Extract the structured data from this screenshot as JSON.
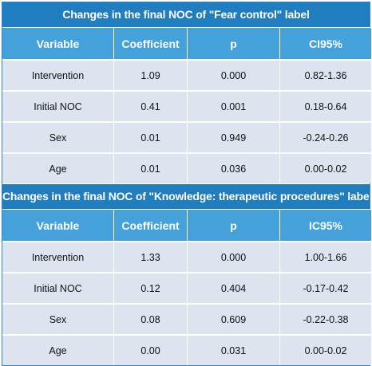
{
  "tables": [
    {
      "title": "Changes in the final NOC of \"Fear control\" label",
      "headers": [
        "Variable",
        "Coefficient",
        "p",
        "CI95%"
      ],
      "rows": [
        [
          "Intervention",
          "1.09",
          "0.000",
          "0.82-1.36"
        ],
        [
          "Initial NOC",
          "0.41",
          "0.001",
          "0.18-0.64"
        ],
        [
          "Sex",
          "0.01",
          "0.949",
          "-0.24-0.26"
        ],
        [
          "Age",
          "0.01",
          "0.036",
          "0.00-0.02"
        ]
      ]
    },
    {
      "title": "Changes in the final NOC of \"Knowledge: therapeutic procedures\" label",
      "headers": [
        "Variable",
        "Coefficient",
        "p",
        "IC95%"
      ],
      "rows": [
        [
          "Intervention",
          "1.33",
          "0.000",
          "1.00-1.66"
        ],
        [
          "Initial NOC",
          "0.12",
          "0.404",
          "-0.17-0.42"
        ],
        [
          "Sex",
          "0.08",
          "0.609",
          "-0.22-0.38"
        ],
        [
          "Age",
          "0.00",
          "0.031",
          "0.00-0.02"
        ]
      ]
    }
  ],
  "colors": {
    "title_bg": "#1f7dc0",
    "header_bg": "#45a1d9",
    "cell_bg": "#dde4f0",
    "border": "#2f86c5"
  }
}
